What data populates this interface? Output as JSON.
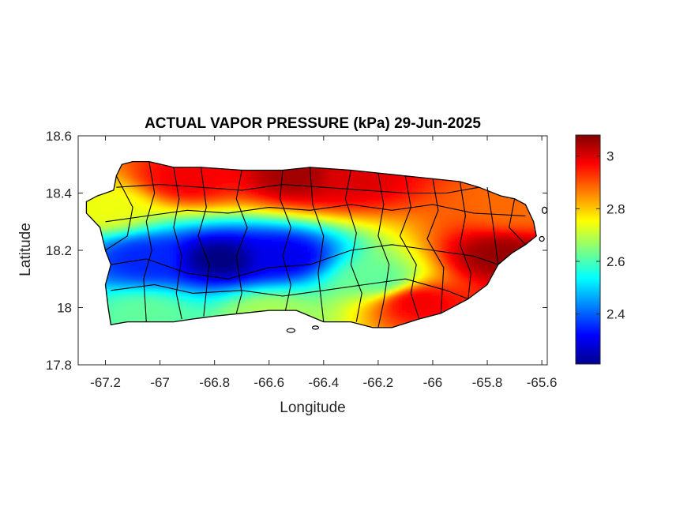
{
  "chart_data": {
    "type": "heatmap",
    "title": "ACTUAL VAPOR PRESSURE (kPa) 29-Jun-2025",
    "xlabel": "Longitude",
    "ylabel": "Latitude",
    "xlim": [
      -67.3,
      -65.58
    ],
    "ylim": [
      17.8,
      18.6
    ],
    "x_ticks": [
      -67.2,
      -67.0,
      -66.8,
      -66.6,
      -66.4,
      -66.2,
      -66.0,
      -65.8,
      -65.6
    ],
    "x_tick_labels": [
      "-67.2",
      "-67",
      "-66.8",
      "-66.6",
      "-66.4",
      "-66.2",
      "-66",
      "-65.8",
      "-65.6"
    ],
    "y_ticks": [
      17.8,
      18.0,
      18.2,
      18.4,
      18.6
    ],
    "y_tick_labels": [
      "17.8",
      "18",
      "18.2",
      "18.4",
      "18.6"
    ],
    "colorbar": {
      "range": [
        2.21,
        3.08
      ],
      "ticks": [
        2.4,
        2.6,
        2.8,
        3.0
      ],
      "tick_labels": [
        "2.4",
        "2.6",
        "2.8",
        "3"
      ],
      "colormap": "jet"
    },
    "field_features": [
      {
        "lon": -66.78,
        "lat": 18.17,
        "value": 2.21
      },
      {
        "lon": -66.55,
        "lat": 18.18,
        "value": 2.3
      },
      {
        "lon": -67.05,
        "lat": 18.17,
        "value": 2.35
      },
      {
        "lon": -66.9,
        "lat": 18.45,
        "value": 2.98
      },
      {
        "lon": -66.5,
        "lat": 18.46,
        "value": 3.05
      },
      {
        "lon": -66.3,
        "lat": 18.45,
        "value": 3.0
      },
      {
        "lon": -65.75,
        "lat": 18.18,
        "value": 3.06
      },
      {
        "lon": -66.05,
        "lat": 18.02,
        "value": 2.98
      },
      {
        "lon": -67.05,
        "lat": 17.98,
        "value": 2.62
      },
      {
        "lon": -67.2,
        "lat": 18.35,
        "value": 2.74
      },
      {
        "lon": -66.6,
        "lat": 17.98,
        "value": 2.68
      },
      {
        "lon": -66.2,
        "lat": 18.1,
        "value": 2.62
      },
      {
        "lon": -65.7,
        "lat": 18.35,
        "value": 2.88
      }
    ]
  },
  "colors": {
    "coastline": "#000000",
    "municipal_boundaries": "#000000",
    "axes": "#262626"
  }
}
